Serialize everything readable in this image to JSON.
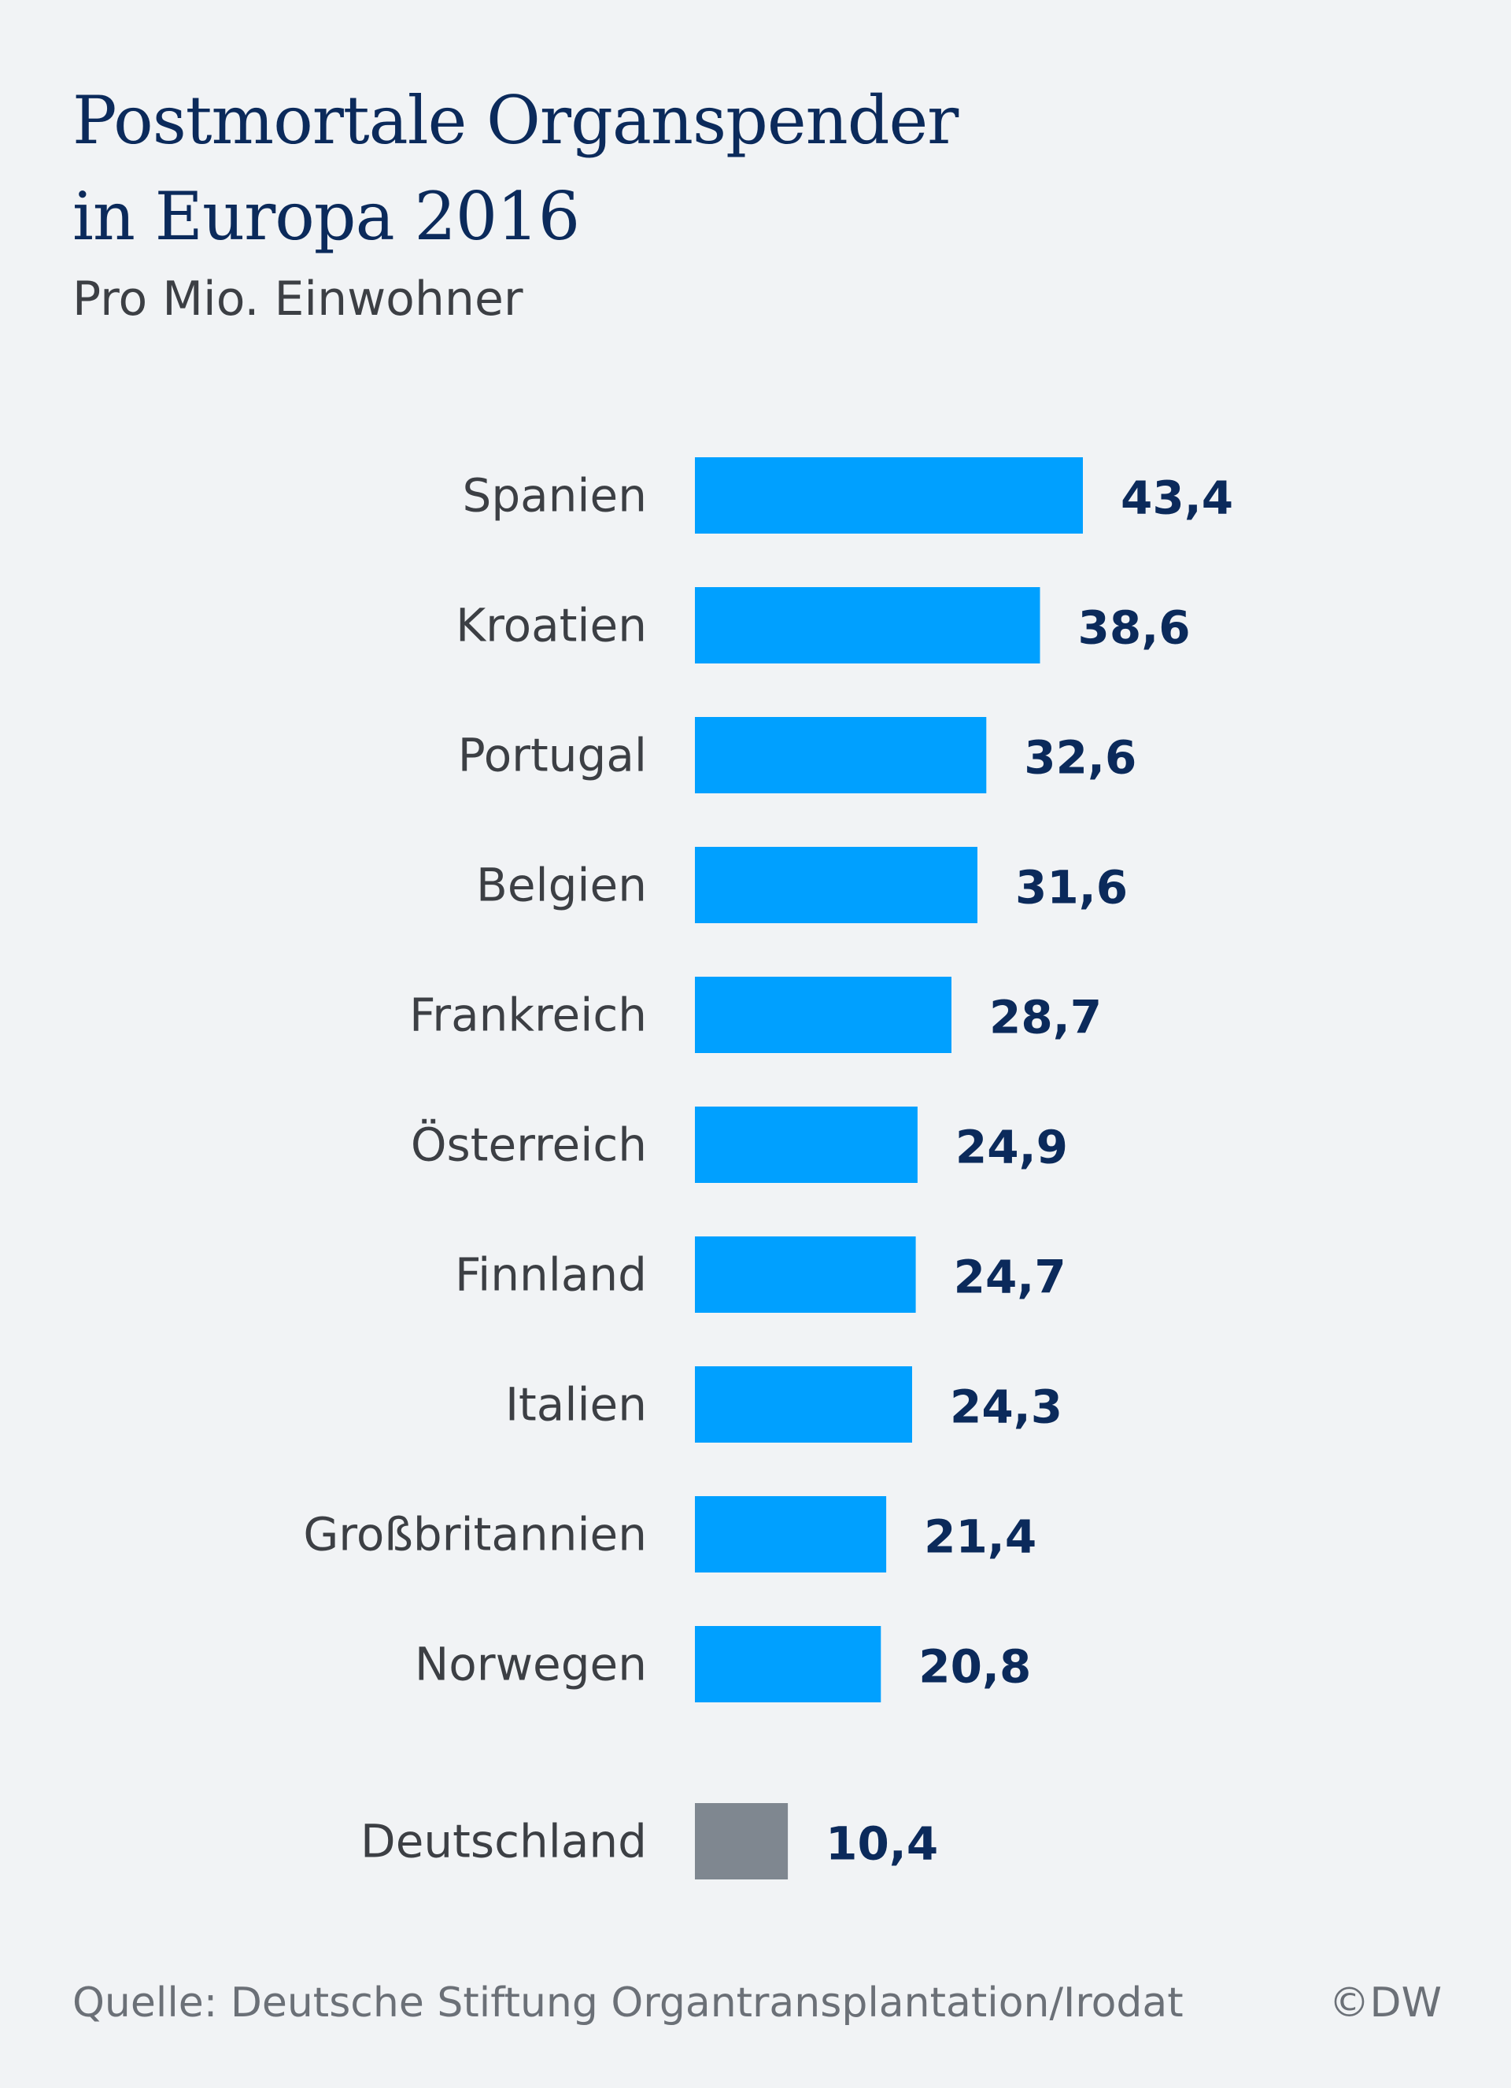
{
  "title_line1": "Postmortale Organspender",
  "title_line2": "in Europa 2016",
  "subtitle": "Pro Mio. Einwohner",
  "source": "Quelle: Deutsche Stiftung Organtransplantation/Irodat",
  "credit": "©DW",
  "colors": {
    "bar": "#00a0ff",
    "highlight_bar": "#7f8790",
    "value_text": "#0b2a5b",
    "label_text": "#3c3f44"
  },
  "chart_data": {
    "type": "bar",
    "orientation": "horizontal",
    "title": "Postmortale Organspender in Europa 2016",
    "subtitle": "Pro Mio. Einwohner",
    "xlabel": "",
    "ylabel": "",
    "xlim": [
      0,
      43.4
    ],
    "grid": false,
    "categories": [
      "Spanien",
      "Kroatien",
      "Portugal",
      "Belgien",
      "Frankreich",
      "Österreich",
      "Finnland",
      "Italien",
      "Großbritannien",
      "Norwegen",
      "Deutschland"
    ],
    "values": [
      43.4,
      38.6,
      32.6,
      31.6,
      28.7,
      24.9,
      24.7,
      24.3,
      21.4,
      20.8,
      10.4
    ],
    "value_labels": [
      "43,4",
      "38,6",
      "32,6",
      "31,6",
      "28,7",
      "24,9",
      "24,7",
      "24,3",
      "21,4",
      "20,8",
      "10,4"
    ],
    "highlight": [
      "Deutschland"
    ]
  }
}
